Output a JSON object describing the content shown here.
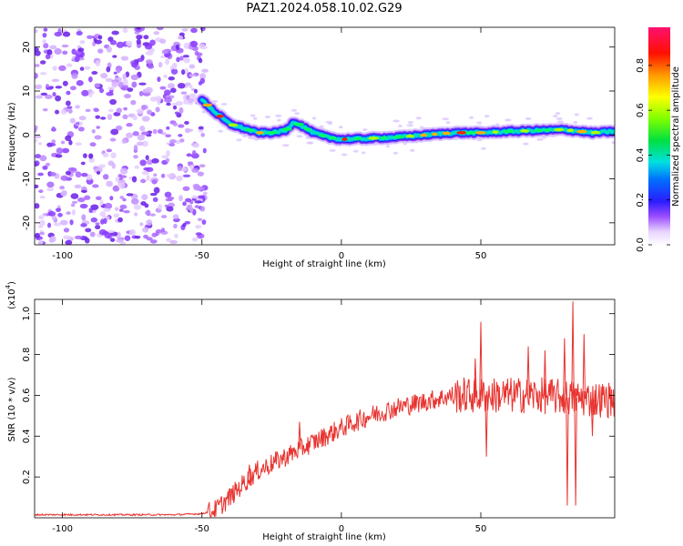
{
  "title": "PAZ1.2024.058.10.02.G29",
  "chart_data": [
    {
      "type": "heatmap",
      "xlabel": "Height of straight line (km)",
      "ylabel": "Frequency (Hz)",
      "xlim": [
        -110,
        98
      ],
      "ylim": [
        -25,
        24.5
      ],
      "xticks": [
        -100,
        -50,
        0,
        50
      ],
      "yticks": [
        20,
        10,
        0,
        -10,
        -20
      ],
      "xtick_labels": [
        "-100",
        "-50",
        "0",
        "50"
      ],
      "ytick_labels": [
        "20",
        "10",
        "0",
        "-10",
        "-20"
      ],
      "colorbar": {
        "label": "Normalized spectral amplitude",
        "ticks": [
          0.0,
          0.2,
          0.4,
          0.6,
          0.8
        ],
        "tick_labels": [
          "0.0",
          "0.2",
          "0.4",
          "0.6",
          "0.8"
        ],
        "range": [
          0,
          0.97
        ]
      },
      "ridge": {
        "x": [
          -50,
          -45,
          -40,
          -35,
          -30,
          -25,
          -20,
          -17,
          -14,
          -10,
          -5,
          0,
          10,
          20,
          30,
          40,
          50,
          60,
          70,
          80,
          90,
          98
        ],
        "y": [
          8,
          5,
          2.5,
          1.5,
          0.5,
          0.5,
          1.0,
          3,
          2,
          0.5,
          -0.5,
          -1,
          -0.8,
          -0.5,
          0,
          0.5,
          0.5,
          0.8,
          1.0,
          1.2,
          0.5,
          0.8
        ]
      },
      "noise_region_x": [
        -110,
        -50
      ],
      "grid": false
    },
    {
      "type": "line",
      "xlabel": "Height of straight line (km)",
      "ylabel": "SNR (10 * v/v)",
      "exponent_label": "(x10",
      "exponent_power": "4",
      "exponent_close": ")",
      "xlim": [
        -110,
        98
      ],
      "ylim": [
        0,
        1.07
      ],
      "xticks": [
        -100,
        -50,
        0,
        50
      ],
      "yticks": [
        0.2,
        0.4,
        0.6,
        0.8,
        1.0
      ],
      "xtick_labels": [
        "-100",
        "-50",
        "0",
        "50"
      ],
      "ytick_labels": [
        "0.2",
        "0.4",
        "0.6",
        "0.8",
        "1.0"
      ],
      "series": [
        {
          "color": "#e8332f",
          "envelope_x": [
            -110,
            -60,
            -50,
            -45,
            -40,
            -35,
            -30,
            -20,
            -10,
            0,
            10,
            20,
            30,
            40,
            50,
            60,
            70,
            80,
            90,
            98
          ],
          "envelope_y": [
            0.015,
            0.015,
            0.02,
            0.04,
            0.1,
            0.17,
            0.23,
            0.3,
            0.37,
            0.44,
            0.5,
            0.54,
            0.57,
            0.6,
            0.6,
            0.6,
            0.6,
            0.59,
            0.58,
            0.58
          ],
          "spikes": [
            {
              "x": 50,
              "y": 0.96
            },
            {
              "x": 48,
              "y": 0.78
            },
            {
              "x": 52,
              "y": 0.3
            },
            {
              "x": 67,
              "y": 0.84
            },
            {
              "x": 73,
              "y": 0.82
            },
            {
              "x": 80,
              "y": 0.88
            },
            {
              "x": 81,
              "y": 0.06
            },
            {
              "x": 83,
              "y": 1.06
            },
            {
              "x": 84,
              "y": 0.06
            },
            {
              "x": 87,
              "y": 0.9
            },
            {
              "x": 90,
              "y": 0.4
            },
            {
              "x": -15,
              "y": 0.47
            },
            {
              "x": -33,
              "y": 0.26
            }
          ]
        }
      ],
      "grid": false
    }
  ]
}
